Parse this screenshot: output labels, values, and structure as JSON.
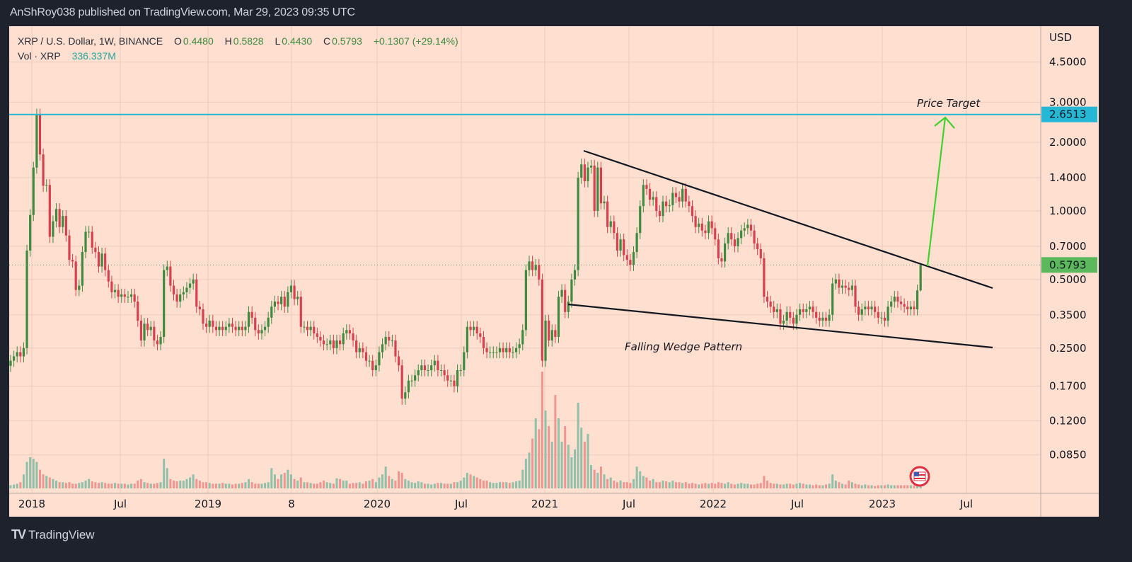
{
  "header": {
    "published": "AnShRoy038 published on TradingView.com, Mar 29, 2023 09:35 UTC"
  },
  "legend": {
    "symbol": "XRP / U.S. Dollar, 1W, BINANCE",
    "open_label": "O",
    "open": "0.4480",
    "high_label": "H",
    "high": "0.5828",
    "low_label": "L",
    "low": "0.4430",
    "close_label": "C",
    "close": "0.5793",
    "change": "+0.1307 (+29.14%)",
    "vol_label": "Vol · XRP",
    "vol": "336.337M"
  },
  "price_axis": {
    "currency": "USD",
    "ticks": [
      "4.5000",
      "3.0000",
      "2.0000",
      "1.4000",
      "1.0000",
      "0.7000",
      "0.5000",
      "0.3500",
      "0.2500",
      "0.1700",
      "0.1200",
      "0.0850"
    ],
    "target_label": "2.6513",
    "last_label": "0.5793"
  },
  "time_axis": {
    "labels": [
      "2018",
      "Jul",
      "2019",
      "8",
      "2020",
      "Jul",
      "2021",
      "Jul",
      "2022",
      "Jul",
      "2023",
      "Jul"
    ]
  },
  "annotations": {
    "price_target": "Price Target",
    "wedge": "Falling Wedge Pattern"
  },
  "brand": {
    "name": "TradingView"
  },
  "colors": {
    "background": "#fedfd0",
    "up": "#3e8a3e",
    "down": "#d7404e",
    "vol_up": "#8fc1aa",
    "vol_down": "#f19590",
    "target_line": "#26b7d4",
    "arrow": "#3fd22c",
    "trendline": "#131722"
  },
  "chart_data": {
    "type": "candlestick",
    "interval": "1W",
    "y_scale": "log",
    "ylim": [
      0.07,
      5.0
    ],
    "target_price": 2.6513,
    "last_price": 0.5793,
    "last_bar": {
      "open": 0.448,
      "high": 0.5828,
      "low": 0.443,
      "close": 0.5793,
      "volume_m": 336.337
    },
    "close": [
      0.22,
      0.23,
      0.24,
      0.23,
      0.25,
      0.67,
      0.96,
      1.55,
      2.65,
      1.77,
      1.29,
      1.3,
      0.77,
      0.9,
      1.02,
      0.85,
      0.95,
      0.78,
      0.61,
      0.6,
      0.45,
      0.47,
      0.66,
      0.81,
      0.81,
      0.69,
      0.66,
      0.57,
      0.65,
      0.55,
      0.49,
      0.44,
      0.45,
      0.42,
      0.43,
      0.42,
      0.42,
      0.43,
      0.4,
      0.33,
      0.27,
      0.32,
      0.3,
      0.31,
      0.27,
      0.26,
      0.28,
      0.55,
      0.57,
      0.47,
      0.43,
      0.4,
      0.43,
      0.44,
      0.46,
      0.48,
      0.5,
      0.38,
      0.37,
      0.32,
      0.31,
      0.33,
      0.31,
      0.3,
      0.31,
      0.3,
      0.31,
      0.32,
      0.31,
      0.3,
      0.31,
      0.3,
      0.31,
      0.36,
      0.34,
      0.3,
      0.29,
      0.3,
      0.31,
      0.34,
      0.38,
      0.4,
      0.39,
      0.42,
      0.38,
      0.44,
      0.47,
      0.41,
      0.42,
      0.31,
      0.31,
      0.3,
      0.31,
      0.29,
      0.28,
      0.27,
      0.26,
      0.26,
      0.27,
      0.25,
      0.27,
      0.26,
      0.29,
      0.3,
      0.29,
      0.27,
      0.24,
      0.25,
      0.24,
      0.22,
      0.22,
      0.2,
      0.21,
      0.24,
      0.26,
      0.28,
      0.27,
      0.27,
      0.23,
      0.21,
      0.15,
      0.16,
      0.18,
      0.18,
      0.19,
      0.2,
      0.21,
      0.2,
      0.2,
      0.21,
      0.22,
      0.2,
      0.2,
      0.19,
      0.18,
      0.18,
      0.17,
      0.2,
      0.2,
      0.24,
      0.31,
      0.3,
      0.31,
      0.29,
      0.28,
      0.25,
      0.24,
      0.24,
      0.24,
      0.24,
      0.25,
      0.24,
      0.25,
      0.24,
      0.24,
      0.25,
      0.26,
      0.3,
      0.55,
      0.6,
      0.55,
      0.58,
      0.5,
      0.22,
      0.33,
      0.27,
      0.3,
      0.28,
      0.42,
      0.45,
      0.36,
      0.4,
      0.5,
      0.55,
      1.4,
      1.6,
      1.35,
      1.55,
      1.58,
      1.0,
      1.55,
      1.08,
      1.1,
      0.85,
      0.9,
      0.8,
      0.67,
      0.75,
      0.64,
      0.61,
      0.58,
      0.66,
      0.8,
      1.05,
      1.3,
      1.25,
      1.12,
      1.15,
      1.0,
      0.95,
      1.1,
      1.05,
      1.06,
      1.2,
      1.15,
      1.1,
      1.25,
      1.1,
      1.05,
      0.95,
      0.85,
      0.88,
      0.82,
      0.8,
      0.9,
      0.84,
      0.75,
      0.62,
      0.6,
      0.72,
      0.8,
      0.75,
      0.7,
      0.76,
      0.82,
      0.84,
      0.87,
      0.82,
      0.72,
      0.68,
      0.62,
      0.42,
      0.4,
      0.38,
      0.36,
      0.37,
      0.32,
      0.33,
      0.36,
      0.34,
      0.32,
      0.35,
      0.37,
      0.36,
      0.37,
      0.38,
      0.36,
      0.34,
      0.33,
      0.34,
      0.33,
      0.35,
      0.48,
      0.5,
      0.46,
      0.47,
      0.46,
      0.45,
      0.47,
      0.38,
      0.35,
      0.37,
      0.38,
      0.37,
      0.38,
      0.36,
      0.34,
      0.34,
      0.33,
      0.38,
      0.4,
      0.42,
      0.4,
      0.39,
      0.38,
      0.37,
      0.38,
      0.37,
      0.448,
      0.5793
    ],
    "volume_m": [
      200,
      250,
      300,
      400,
      900,
      1700,
      2000,
      1900,
      1700,
      1200,
      900,
      800,
      700,
      600,
      500,
      400,
      400,
      350,
      400,
      300,
      300,
      350,
      400,
      500,
      600,
      450,
      400,
      350,
      400,
      350,
      300,
      300,
      350,
      300,
      300,
      300,
      250,
      300,
      300,
      500,
      600,
      400,
      350,
      300,
      300,
      350,
      400,
      1900,
      1300,
      600,
      500,
      450,
      500,
      500,
      600,
      700,
      900,
      600,
      500,
      400,
      400,
      350,
      300,
      300,
      300,
      350,
      300,
      300,
      250,
      300,
      300,
      350,
      400,
      600,
      400,
      300,
      300,
      300,
      350,
      400,
      1300,
      900,
      600,
      900,
      1000,
      1200,
      900,
      600,
      500,
      700,
      400,
      400,
      350,
      300,
      300,
      400,
      500,
      400,
      350,
      300,
      650,
      600,
      500,
      500,
      300,
      350,
      350,
      400,
      300,
      450,
      500,
      600,
      400,
      700,
      900,
      1400,
      800,
      600,
      500,
      1100,
      1000,
      600,
      500,
      400,
      350,
      450,
      400,
      300,
      300,
      250,
      300,
      350,
      350,
      300,
      300,
      300,
      400,
      400,
      500,
      700,
      1000,
      900,
      800,
      700,
      600,
      500,
      500,
      400,
      350,
      350,
      400,
      400,
      400,
      350,
      400,
      450,
      500,
      1200,
      1900,
      2300,
      3200,
      4500,
      3800,
      7500,
      5000,
      4000,
      3000,
      6000,
      4500,
      3000,
      4000,
      2800,
      2000,
      2500,
      5500,
      3900,
      3000,
      3500,
      1500,
      1200,
      1000,
      1400,
      900,
      600,
      700,
      500,
      400,
      500,
      400,
      400,
      350,
      600,
      1400,
      1100,
      800,
      700,
      500,
      600,
      400,
      400,
      500,
      450,
      400,
      500,
      400,
      400,
      350,
      400,
      300,
      350,
      300,
      250,
      300,
      350,
      300,
      350,
      300,
      400,
      350,
      300,
      400,
      300,
      250,
      300,
      350,
      300,
      300,
      250,
      250,
      300,
      350,
      800,
      500,
      350,
      300,
      300,
      250,
      250,
      300,
      300,
      250,
      300,
      350,
      300,
      250,
      250,
      200,
      250,
      200,
      200,
      250,
      300,
      900,
      500,
      400,
      300,
      250,
      500,
      400,
      300,
      250,
      200,
      250,
      200,
      200,
      150,
      200,
      200,
      200,
      250,
      200,
      200,
      200,
      200,
      200,
      200,
      200,
      200,
      300,
      336.337
    ]
  }
}
